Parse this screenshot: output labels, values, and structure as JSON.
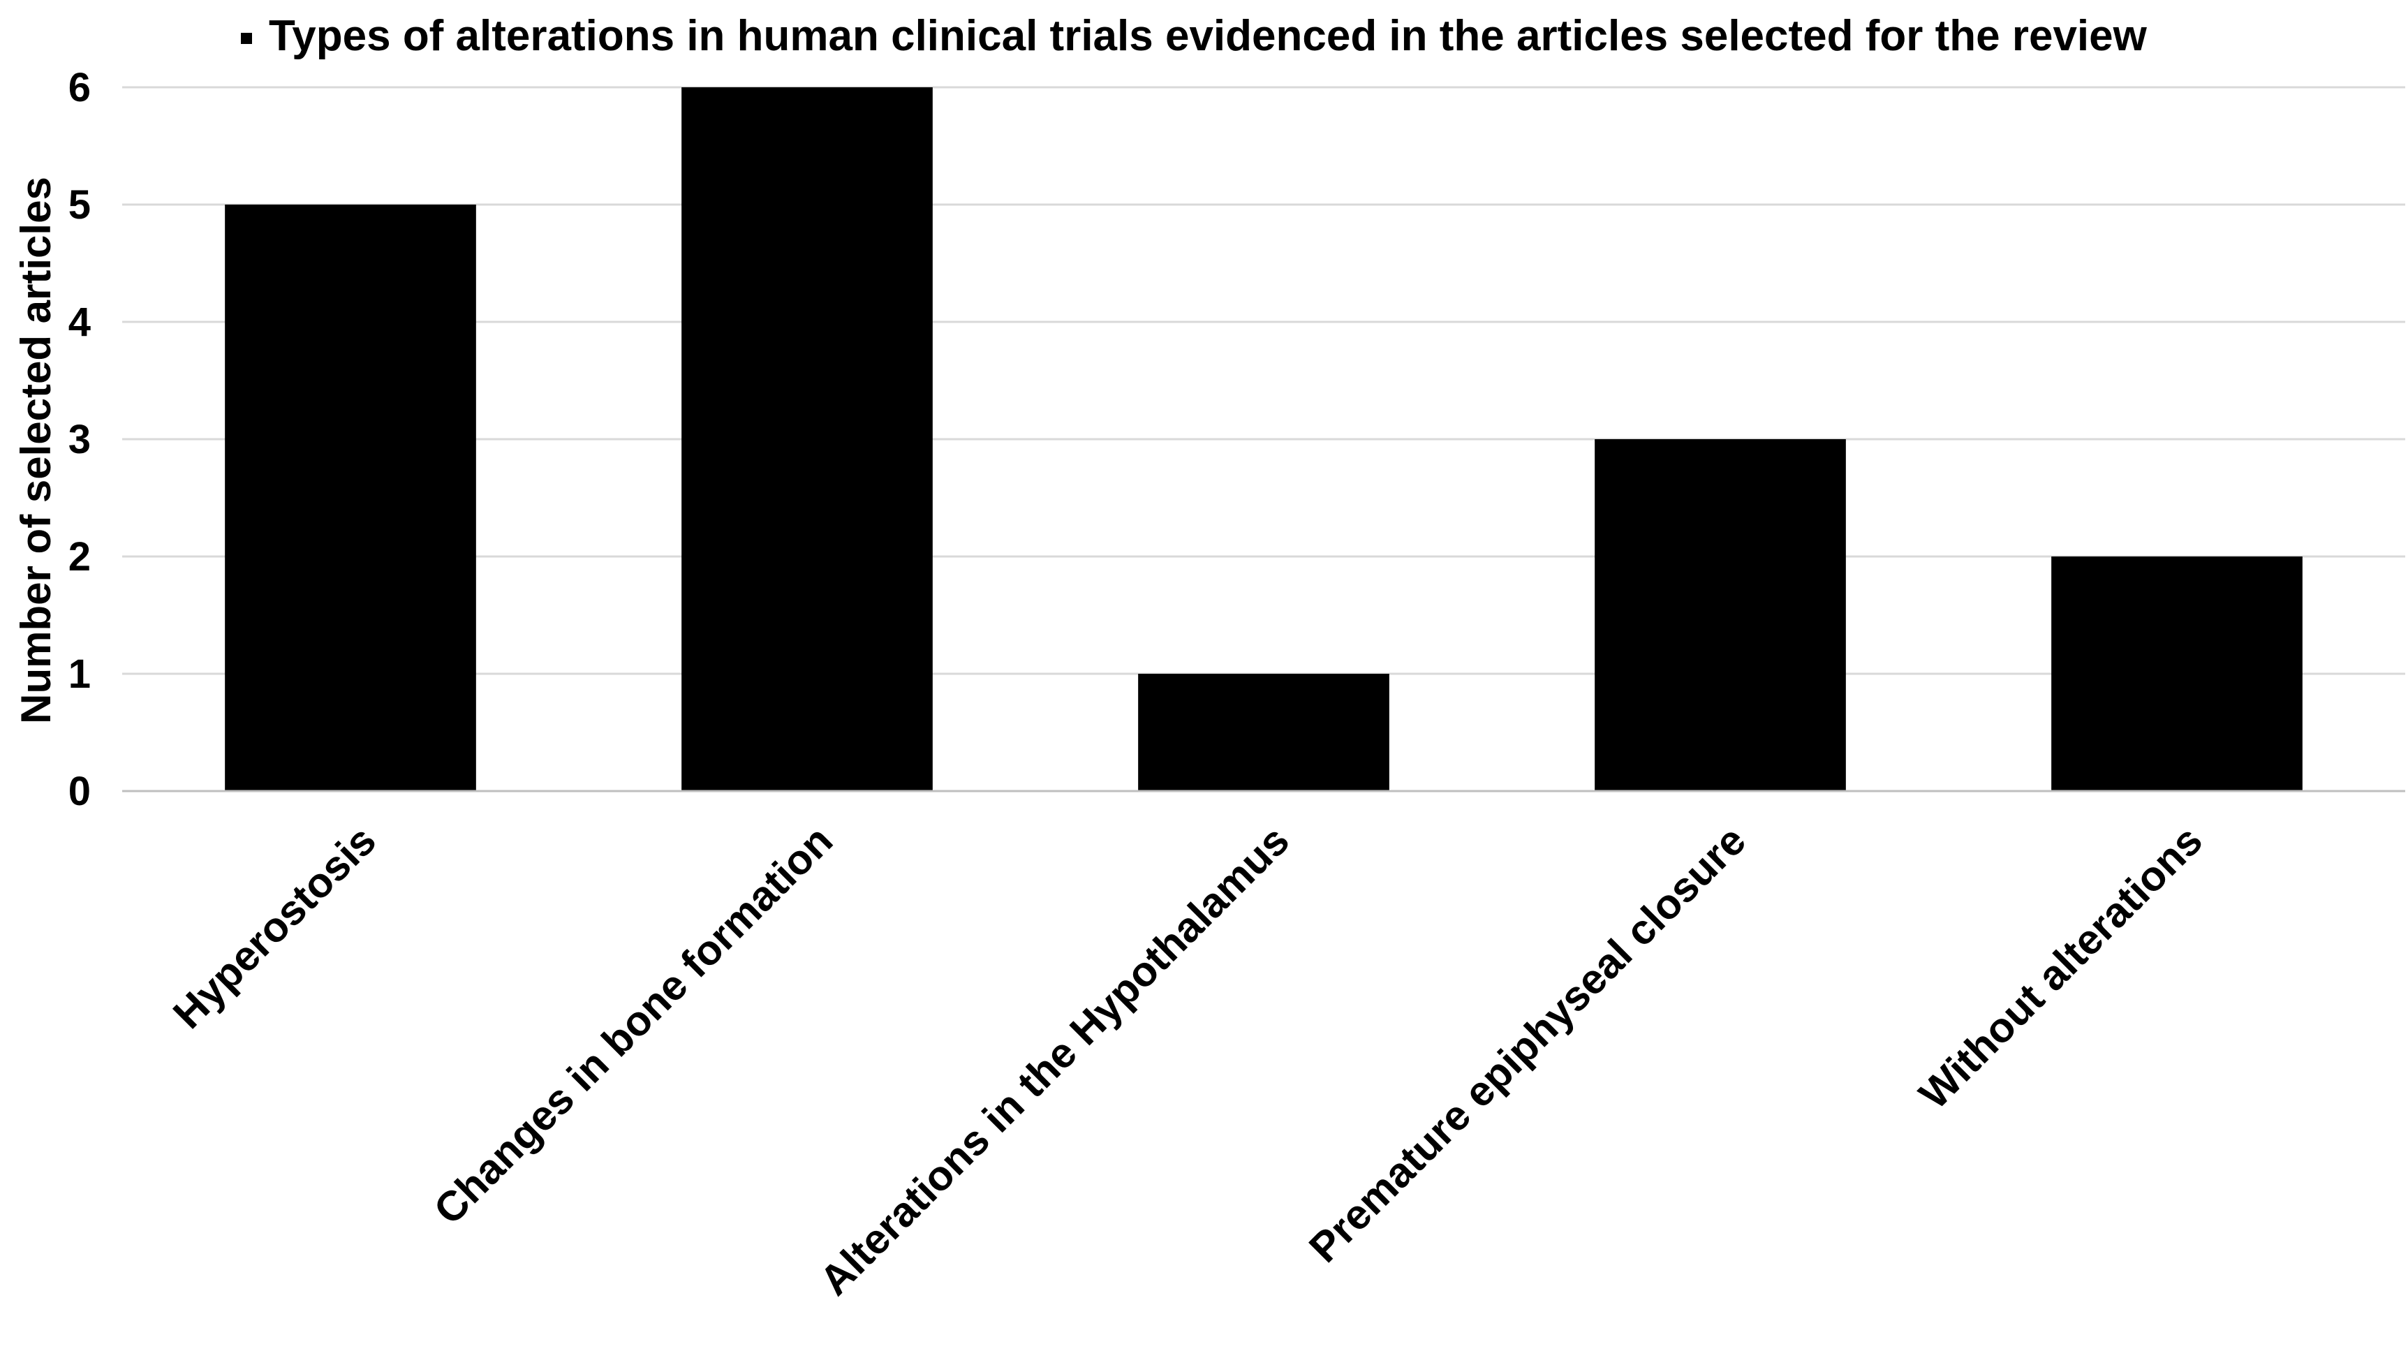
{
  "chart_data": {
    "type": "bar",
    "title": "Types of alterations in human clinical trials evidenced in the articles selected for the review",
    "xlabel": "",
    "ylabel": "Number of selected articles",
    "categories": [
      "Hyperostosis",
      "Changes in bone formation",
      "Alterations in the Hypothalamus",
      "Premature epiphyseal closure",
      "Without alterations"
    ],
    "values": [
      5,
      6,
      1,
      3,
      2
    ],
    "ylim": [
      0,
      6
    ],
    "yticks": [
      0,
      1,
      2,
      3,
      4,
      5,
      6
    ],
    "grid": true,
    "legend": "top",
    "colors": {
      "bar": "#000000",
      "grid": "#d9d9d9",
      "axis": "#bfbfbf",
      "text": "#000000"
    }
  }
}
